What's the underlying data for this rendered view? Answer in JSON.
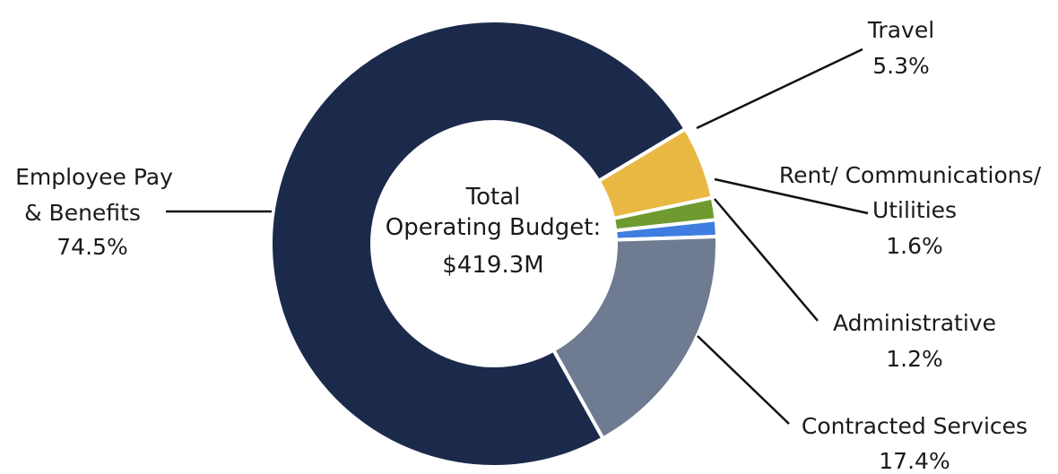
{
  "chart_data": {
    "type": "pie",
    "style": "donut",
    "center_label": {
      "line1": "Total",
      "line2": "Operating Budget:",
      "line3": "$419.3M"
    },
    "slices": [
      {
        "key": "employee",
        "name_lines": [
          "Employee Pay",
          "& Benefits"
        ],
        "value": 74.5,
        "value_label": "74.5%",
        "color": "#1b2a4b"
      },
      {
        "key": "travel",
        "name_lines": [
          "Travel"
        ],
        "value": 5.3,
        "value_label": "5.3%",
        "color": "#e8b842"
      },
      {
        "key": "rent",
        "name_lines": [
          "Rent/ Communications/",
          "Utilities"
        ],
        "value": 1.6,
        "value_label": "1.6%",
        "color": "#6e9a2f"
      },
      {
        "key": "admin",
        "name_lines": [
          "Administrative"
        ],
        "value": 1.2,
        "value_label": "1.2%",
        "color": "#3f7de0"
      },
      {
        "key": "contracted",
        "name_lines": [
          "Contracted Services"
        ],
        "value": 17.4,
        "value_label": "17.4%",
        "color": "#6e7b91"
      }
    ]
  }
}
